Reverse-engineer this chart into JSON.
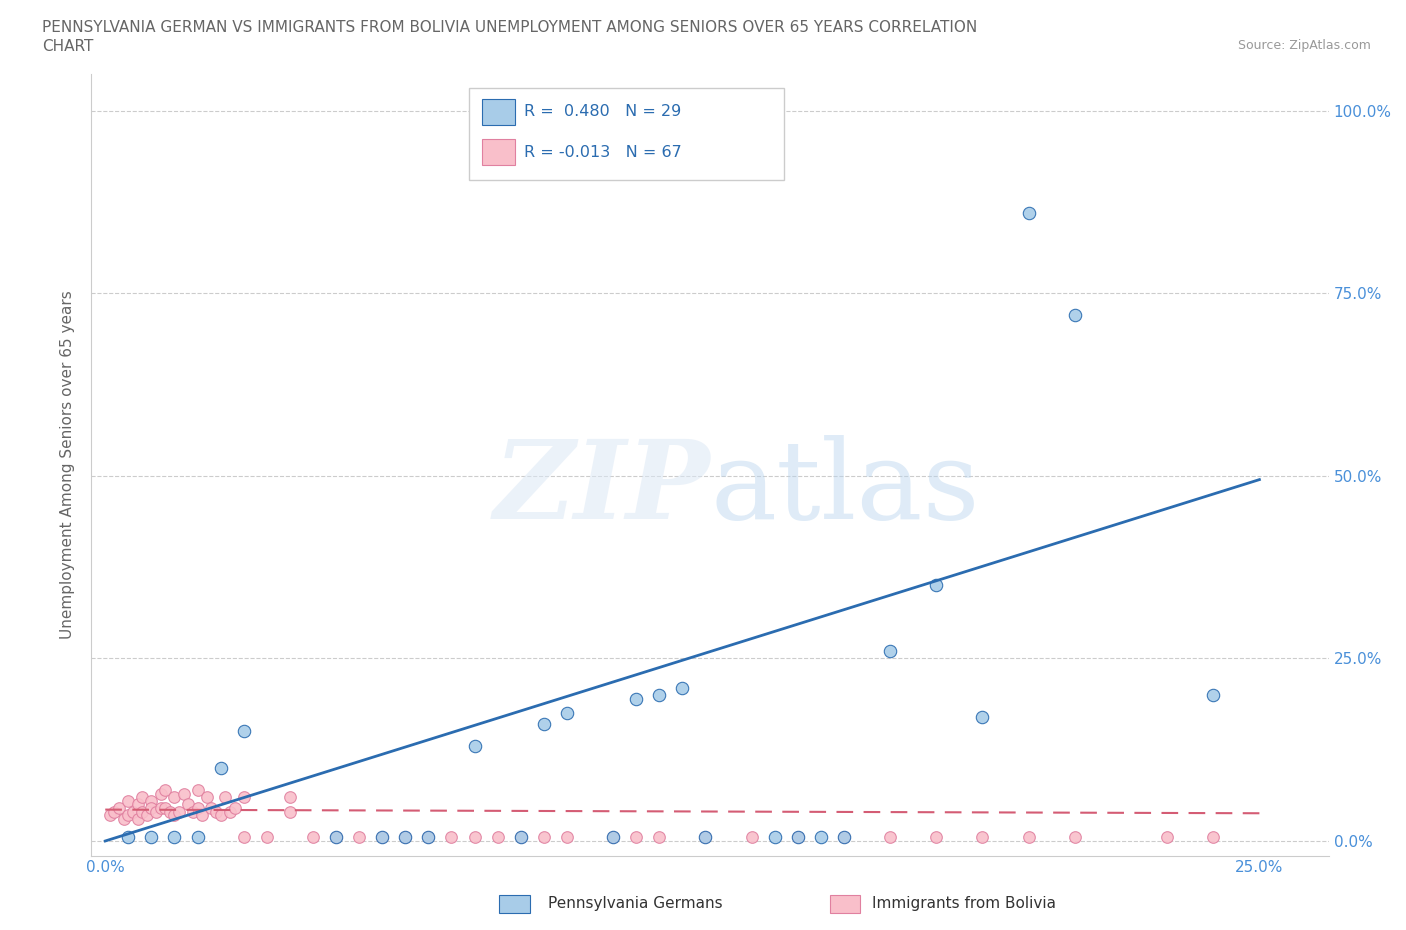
{
  "title_line1": "PENNSYLVANIA GERMAN VS IMMIGRANTS FROM BOLIVIA UNEMPLOYMENT AMONG SENIORS OVER 65 YEARS CORRELATION",
  "title_line2": "CHART",
  "source": "Source: ZipAtlas.com",
  "ylabel": "Unemployment Among Seniors over 65 years",
  "watermark": "ZIPatlas",
  "legend_label1": "Pennsylvania Germans",
  "legend_label2": "Immigrants from Bolivia",
  "r1": 0.48,
  "n1": 29,
  "r2": -0.013,
  "n2": 67,
  "blue_color": "#a8cce8",
  "pink_color": "#f9bfca",
  "trend_blue": "#2b6cb0",
  "trend_pink": "#d45c74",
  "bg_color": "#ffffff",
  "grid_color": "#cccccc",
  "tick_color": "#4a90d9",
  "title_color": "#666666",
  "blue_scatter_x": [
    0.005,
    0.01,
    0.015,
    0.02,
    0.025,
    0.03,
    0.05,
    0.06,
    0.065,
    0.07,
    0.08,
    0.09,
    0.095,
    0.1,
    0.11,
    0.115,
    0.12,
    0.125,
    0.13,
    0.145,
    0.15,
    0.155,
    0.16,
    0.17,
    0.18,
    0.19,
    0.2,
    0.21,
    0.24
  ],
  "blue_scatter_y": [
    0.005,
    0.005,
    0.005,
    0.005,
    0.1,
    0.15,
    0.005,
    0.005,
    0.005,
    0.005,
    0.13,
    0.005,
    0.16,
    0.175,
    0.005,
    0.195,
    0.2,
    0.21,
    0.005,
    0.005,
    0.005,
    0.005,
    0.005,
    0.26,
    0.35,
    0.17,
    0.86,
    0.72,
    0.2
  ],
  "pink_scatter_x": [
    0.001,
    0.002,
    0.003,
    0.004,
    0.005,
    0.005,
    0.006,
    0.007,
    0.007,
    0.008,
    0.008,
    0.009,
    0.01,
    0.01,
    0.011,
    0.012,
    0.012,
    0.013,
    0.013,
    0.014,
    0.015,
    0.015,
    0.016,
    0.017,
    0.018,
    0.019,
    0.02,
    0.02,
    0.021,
    0.022,
    0.023,
    0.024,
    0.025,
    0.026,
    0.027,
    0.028,
    0.03,
    0.03,
    0.035,
    0.04,
    0.04,
    0.045,
    0.05,
    0.055,
    0.06,
    0.065,
    0.07,
    0.075,
    0.08,
    0.085,
    0.09,
    0.095,
    0.1,
    0.11,
    0.115,
    0.12,
    0.13,
    0.14,
    0.15,
    0.16,
    0.17,
    0.18,
    0.19,
    0.2,
    0.21,
    0.23,
    0.24
  ],
  "pink_scatter_y": [
    0.035,
    0.04,
    0.045,
    0.03,
    0.055,
    0.035,
    0.04,
    0.05,
    0.03,
    0.04,
    0.06,
    0.035,
    0.055,
    0.045,
    0.04,
    0.045,
    0.065,
    0.045,
    0.07,
    0.04,
    0.035,
    0.06,
    0.04,
    0.065,
    0.05,
    0.04,
    0.045,
    0.07,
    0.035,
    0.06,
    0.045,
    0.04,
    0.035,
    0.06,
    0.04,
    0.045,
    0.005,
    0.06,
    0.005,
    0.04,
    0.06,
    0.005,
    0.005,
    0.005,
    0.005,
    0.005,
    0.005,
    0.005,
    0.005,
    0.005,
    0.005,
    0.005,
    0.005,
    0.005,
    0.005,
    0.005,
    0.005,
    0.005,
    0.005,
    0.005,
    0.005,
    0.005,
    0.005,
    0.005,
    0.005,
    0.005,
    0.005
  ],
  "ylim": [
    -0.02,
    1.05
  ],
  "xlim": [
    -0.003,
    0.265
  ],
  "yticks": [
    0.0,
    0.25,
    0.5,
    0.75,
    1.0
  ],
  "ytick_labels": [
    "0.0%",
    "25.0%",
    "50.0%",
    "75.0%",
    "100.0%"
  ],
  "xticks": [
    0.0,
    0.25
  ],
  "xtick_labels": [
    "0.0%",
    "25.0%"
  ]
}
